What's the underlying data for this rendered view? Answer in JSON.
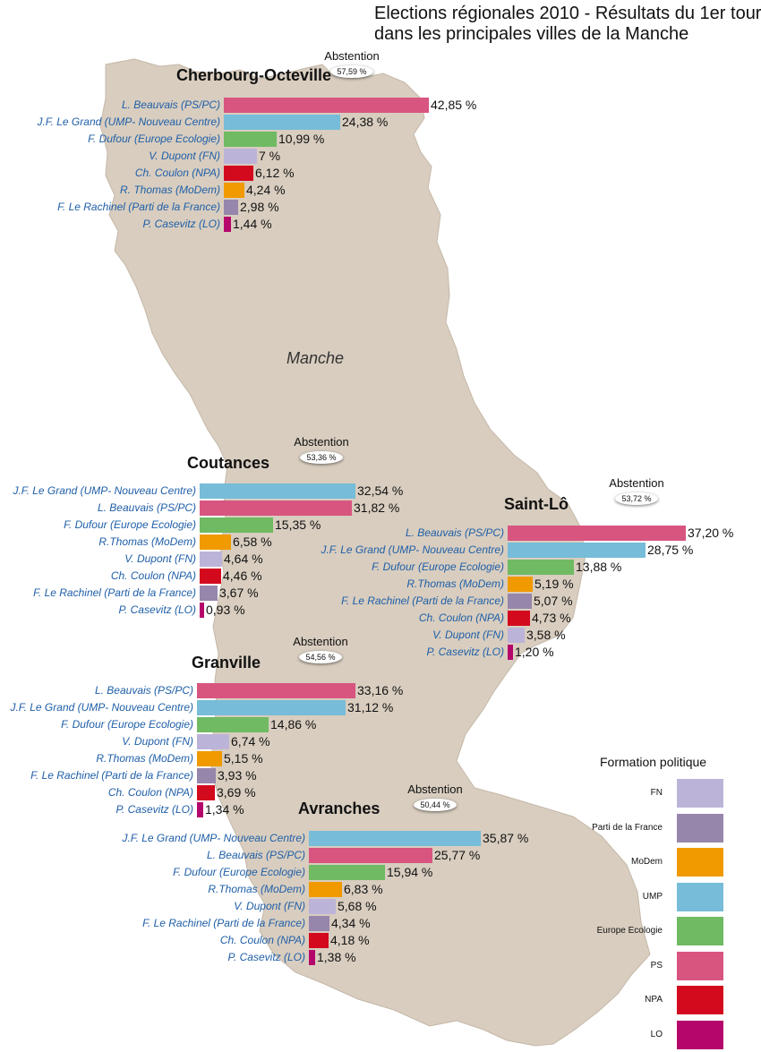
{
  "title_line1": "Elections régionales 2010 - Résultats du 1er tour",
  "title_line2": "dans les principales villes de la Manche",
  "region_label": "Manche",
  "legend": {
    "title": "Formation politique",
    "items": [
      {
        "party": "FN",
        "color": "#bcb4d8"
      },
      {
        "party": "Parti de la France",
        "color": "#9686ab"
      },
      {
        "party": "MoDem",
        "color": "#f09a00"
      },
      {
        "party": "UMP",
        "color": "#77bcd8"
      },
      {
        "party": "Europe Ecologie",
        "color": "#6fba62"
      },
      {
        "party": "PS",
        "color": "#d85580"
      },
      {
        "party": "NPA",
        "color": "#d30a1e"
      },
      {
        "party": "LO",
        "color": "#b5066b"
      }
    ]
  },
  "chart_data": [
    {
      "type": "bar",
      "city": "Cherbourg-Octeville",
      "abstention_label": "Abstention",
      "abstention": "57,59 %",
      "candidates": [
        {
          "name": "L. Beauvais (PS/PC)",
          "party": "PS",
          "value": 42.85,
          "label": "42,85 %"
        },
        {
          "name": "J.F. Le Grand (UMP- Nouveau Centre)",
          "party": "UMP",
          "value": 24.38,
          "label": "24,38 %"
        },
        {
          "name": "F. Dufour (Europe Ecologie)",
          "party": "Europe Ecologie",
          "value": 10.99,
          "label": "10,99 %"
        },
        {
          "name": "V. Dupont (FN)",
          "party": "FN",
          "value": 7,
          "label": "7 %"
        },
        {
          "name": "Ch. Coulon (NPA)",
          "party": "NPA",
          "value": 6.12,
          "label": "6,12 %"
        },
        {
          "name": "R. Thomas (MoDem)",
          "party": "MoDem",
          "value": 4.24,
          "label": "4,24 %"
        },
        {
          "name": "F. Le Rachinel (Parti de la France)",
          "party": "Parti de la France",
          "value": 2.98,
          "label": "2,98 %"
        },
        {
          "name": "P. Casevitz (LO)",
          "party": "LO",
          "value": 1.44,
          "label": "1,44 %"
        }
      ]
    },
    {
      "type": "bar",
      "city": "Coutances",
      "abstention_label": "Abstention",
      "abstention": "53,36 %",
      "candidates": [
        {
          "name": "J.F. Le Grand (UMP- Nouveau Centre)",
          "party": "UMP",
          "value": 32.54,
          "label": "32,54 %"
        },
        {
          "name": "L. Beauvais (PS/PC)",
          "party": "PS",
          "value": 31.82,
          "label": "31,82 %"
        },
        {
          "name": "F. Dufour (Europe Ecologie)",
          "party": "Europe Ecologie",
          "value": 15.35,
          "label": "15,35 %"
        },
        {
          "name": "R.Thomas (MoDem)",
          "party": "MoDem",
          "value": 6.58,
          "label": "6,58 %"
        },
        {
          "name": "V. Dupont (FN)",
          "party": "FN",
          "value": 4.64,
          "label": "4,64 %"
        },
        {
          "name": "Ch. Coulon (NPA)",
          "party": "NPA",
          "value": 4.46,
          "label": "4,46 %"
        },
        {
          "name": "F. Le Rachinel (Parti de la France)",
          "party": "Parti de la France",
          "value": 3.67,
          "label": "3,67 %"
        },
        {
          "name": "P. Casevitz (LO)",
          "party": "LO",
          "value": 0.93,
          "label": "0,93 %"
        }
      ]
    },
    {
      "type": "bar",
      "city": "Saint-Lô",
      "abstention_label": "Abstention",
      "abstention": "53,72 %",
      "candidates": [
        {
          "name": "L. Beauvais (PS/PC)",
          "party": "PS",
          "value": 37.2,
          "label": "37,20 %"
        },
        {
          "name": "J.F. Le Grand (UMP- Nouveau Centre)",
          "party": "UMP",
          "value": 28.75,
          "label": "28,75 %"
        },
        {
          "name": "F. Dufour (Europe Ecologie)",
          "party": "Europe Ecologie",
          "value": 13.88,
          "label": "13,88 %"
        },
        {
          "name": "R.Thomas (MoDem)",
          "party": "MoDem",
          "value": 5.19,
          "label": "5,19 %"
        },
        {
          "name": "F. Le Rachinel (Parti de la France)",
          "party": "Parti de la France",
          "value": 5.07,
          "label": "5,07 %"
        },
        {
          "name": "Ch. Coulon (NPA)",
          "party": "NPA",
          "value": 4.73,
          "label": "4,73 %"
        },
        {
          "name": "V. Dupont (FN)",
          "party": "FN",
          "value": 3.58,
          "label": "3,58 %"
        },
        {
          "name": "P. Casevitz (LO)",
          "party": "LO",
          "value": 1.2,
          "label": "1,20 %"
        }
      ]
    },
    {
      "type": "bar",
      "city": "Granville",
      "abstention_label": "Abstention",
      "abstention": "54,56 %",
      "candidates": [
        {
          "name": "L. Beauvais (PS/PC)",
          "party": "PS",
          "value": 33.16,
          "label": "33,16 %"
        },
        {
          "name": "J.F. Le Grand (UMP- Nouveau Centre)",
          "party": "UMP",
          "value": 31.12,
          "label": "31,12 %"
        },
        {
          "name": "F. Dufour (Europe Ecologie)",
          "party": "Europe Ecologie",
          "value": 14.86,
          "label": "14,86 %"
        },
        {
          "name": "V. Dupont (FN)",
          "party": "FN",
          "value": 6.74,
          "label": "6,74 %"
        },
        {
          "name": "R.Thomas (MoDem)",
          "party": "MoDem",
          "value": 5.15,
          "label": "5,15 %"
        },
        {
          "name": "F. Le Rachinel (Parti de la France)",
          "party": "Parti de la France",
          "value": 3.93,
          "label": "3,93 %"
        },
        {
          "name": "Ch. Coulon (NPA)",
          "party": "NPA",
          "value": 3.69,
          "label": "3,69 %"
        },
        {
          "name": "P. Casevitz (LO)",
          "party": "LO",
          "value": 1.34,
          "label": "1,34 %"
        }
      ]
    },
    {
      "type": "bar",
      "city": "Avranches",
      "abstention_label": "Abstention",
      "abstention": "50,44 %",
      "candidates": [
        {
          "name": "J.F. Le Grand (UMP- Nouveau Centre)",
          "party": "UMP",
          "value": 35.87,
          "label": "35,87 %"
        },
        {
          "name": "L. Beauvais (PS/PC)",
          "party": "PS",
          "value": 25.77,
          "label": "25,77 %"
        },
        {
          "name": "F. Dufour (Europe Ecologie)",
          "party": "Europe Ecologie",
          "value": 15.94,
          "label": "15,94 %"
        },
        {
          "name": "R.Thomas (MoDem)",
          "party": "MoDem",
          "value": 6.83,
          "label": "6,83 %"
        },
        {
          "name": "V. Dupont (FN)",
          "party": "FN",
          "value": 5.68,
          "label": "5,68 %"
        },
        {
          "name": "F. Le Rachinel (Parti de la France)",
          "party": "Parti de la France",
          "value": 4.34,
          "label": "4,34 %"
        },
        {
          "name": "Ch. Coulon (NPA)",
          "party": "NPA",
          "value": 4.18,
          "label": "4,18 %"
        },
        {
          "name": "P. Casevitz (LO)",
          "party": "LO",
          "value": 1.38,
          "label": "1,38 %"
        }
      ]
    }
  ]
}
